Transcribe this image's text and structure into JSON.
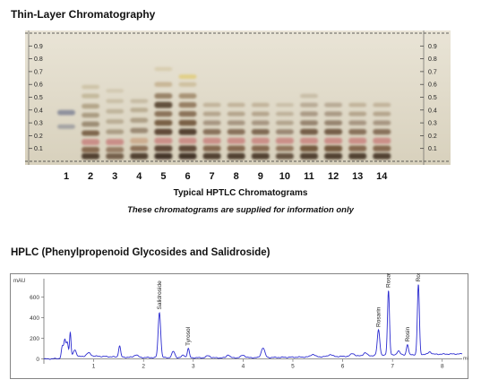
{
  "tlc": {
    "title": "Thin-Layer Chromatography",
    "caption": "Typical HPTLC Chromatograms",
    "note": "These chromatograms are supplied for information only",
    "rf_ticks": [
      "0.1",
      "0.2",
      "0.3",
      "0.4",
      "0.5",
      "0.6",
      "0.7",
      "0.8",
      "0.9"
    ],
    "lanes": [
      "1",
      "2",
      "3",
      "4",
      "5",
      "6",
      "7",
      "8",
      "9",
      "10",
      "11",
      "12",
      "13",
      "14"
    ]
  },
  "hplc": {
    "title": "HPLC (Phenylpropenoid Glycosides and Salidroside)"
  },
  "colors": {
    "plate_bg": "#e3ddcc",
    "trace": "#2b2bd0",
    "pink_band": "#c98b85",
    "brown_band": "#6e5337"
  },
  "chart_data": [
    {
      "type": "heatmap",
      "title": "Thin-Layer Chromatography",
      "xlabel": "Typical HPTLC Chromatograms",
      "x_categories": [
        "1",
        "2",
        "3",
        "4",
        "5",
        "6",
        "7",
        "8",
        "9",
        "10",
        "11",
        "12",
        "13",
        "14"
      ],
      "y_ticks": [
        0.1,
        0.2,
        0.3,
        0.4,
        0.5,
        0.6,
        0.7,
        0.8,
        0.9
      ],
      "ylim": [
        0,
        1.0
      ],
      "lanes": [
        {
          "lane": "1",
          "bands": [
            {
              "rf": 0.38,
              "c": "#7a7f93",
              "w": 0.7
            },
            {
              "rf": 0.27,
              "c": "#8d8f97",
              "w": 0.5
            }
          ]
        },
        {
          "lane": "2",
          "bands": [
            {
              "rf": 0.04,
              "c": "#4c3a2a",
              "w": 1
            },
            {
              "rf": 0.09,
              "c": "#7e5f45",
              "w": 0.9
            },
            {
              "rf": 0.15,
              "c": "#c98b85",
              "w": 1
            },
            {
              "rf": 0.22,
              "c": "#6e5337",
              "w": 0.8
            },
            {
              "rf": 0.29,
              "c": "#8d7a60",
              "w": 0.7
            },
            {
              "rf": 0.36,
              "c": "#99876a",
              "w": 0.6
            },
            {
              "rf": 0.43,
              "c": "#a59474",
              "w": 0.6
            },
            {
              "rf": 0.51,
              "c": "#b8aa88",
              "w": 0.5
            },
            {
              "rf": 0.58,
              "c": "#c5b896",
              "w": 0.4
            }
          ]
        },
        {
          "lane": "3",
          "bands": [
            {
              "rf": 0.04,
              "c": "#6a5440",
              "w": 0.9
            },
            {
              "rf": 0.09,
              "c": "#8c7056",
              "w": 0.8
            },
            {
              "rf": 0.15,
              "c": "#c98b85",
              "w": 1
            },
            {
              "rf": 0.23,
              "c": "#9b8a70",
              "w": 0.6
            },
            {
              "rf": 0.31,
              "c": "#ab9c80",
              "w": 0.5
            },
            {
              "rf": 0.39,
              "c": "#b3a68a",
              "w": 0.5
            },
            {
              "rf": 0.47,
              "c": "#bfb396",
              "w": 0.4
            },
            {
              "rf": 0.55,
              "c": "#c9bea2",
              "w": 0.3
            }
          ]
        },
        {
          "lane": "4",
          "bands": [
            {
              "rf": 0.04,
              "c": "#4c3a2a",
              "w": 1
            },
            {
              "rf": 0.1,
              "c": "#7e5f45",
              "w": 0.8
            },
            {
              "rf": 0.16,
              "c": "#caa98a",
              "w": 0.9
            },
            {
              "rf": 0.24,
              "c": "#8a7760",
              "w": 0.7
            },
            {
              "rf": 0.32,
              "c": "#9e8d72",
              "w": 0.6
            },
            {
              "rf": 0.4,
              "c": "#ab9b7e",
              "w": 0.5
            },
            {
              "rf": 0.47,
              "c": "#b9ac90",
              "w": 0.4
            }
          ]
        },
        {
          "lane": "5",
          "bands": [
            {
              "rf": 0.04,
              "c": "#3e2e22",
              "w": 1
            },
            {
              "rf": 0.1,
              "c": "#5a4330",
              "w": 1
            },
            {
              "rf": 0.16,
              "c": "#c98b85",
              "w": 1
            },
            {
              "rf": 0.23,
              "c": "#5a4330",
              "w": 1
            },
            {
              "rf": 0.3,
              "c": "#6e5337",
              "w": 0.9
            },
            {
              "rf": 0.37,
              "c": "#7d6246",
              "w": 0.8
            },
            {
              "rf": 0.44,
              "c": "#5c4a36",
              "w": 1
            },
            {
              "rf": 0.51,
              "c": "#8d7559",
              "w": 0.8
            },
            {
              "rf": 0.6,
              "c": "#bfa985",
              "w": 0.6
            },
            {
              "rf": 0.72,
              "c": "#d2c5a2",
              "w": 0.4
            }
          ]
        },
        {
          "lane": "6",
          "bands": [
            {
              "rf": 0.04,
              "c": "#3e2e22",
              "w": 1
            },
            {
              "rf": 0.1,
              "c": "#5a4330",
              "w": 1
            },
            {
              "rf": 0.16,
              "c": "#c98b85",
              "w": 1
            },
            {
              "rf": 0.23,
              "c": "#4e3a2a",
              "w": 1
            },
            {
              "rf": 0.3,
              "c": "#6e5337",
              "w": 0.9
            },
            {
              "rf": 0.37,
              "c": "#7d6246",
              "w": 0.8
            },
            {
              "rf": 0.44,
              "c": "#8a6f52",
              "w": 0.8
            },
            {
              "rf": 0.51,
              "c": "#9a8160",
              "w": 0.7
            },
            {
              "rf": 0.6,
              "c": "#c7b58e",
              "w": 0.5
            },
            {
              "rf": 0.66,
              "c": "#e0c96a",
              "w": 0.5
            }
          ]
        },
        {
          "lane": "7",
          "bands": [
            {
              "rf": 0.04,
              "c": "#4c3a2a",
              "w": 1
            },
            {
              "rf": 0.1,
              "c": "#7e5f45",
              "w": 0.9
            },
            {
              "rf": 0.16,
              "c": "#c98b85",
              "w": 1
            },
            {
              "rf": 0.23,
              "c": "#7a6048",
              "w": 0.8
            },
            {
              "rf": 0.3,
              "c": "#94806a",
              "w": 0.6
            },
            {
              "rf": 0.37,
              "c": "#a38f74",
              "w": 0.5
            },
            {
              "rf": 0.44,
              "c": "#b19f82",
              "w": 0.4
            }
          ]
        },
        {
          "lane": "8",
          "bands": [
            {
              "rf": 0.04,
              "c": "#4c3a2a",
              "w": 1
            },
            {
              "rf": 0.1,
              "c": "#7e5f45",
              "w": 0.9
            },
            {
              "rf": 0.16,
              "c": "#c98b85",
              "w": 1
            },
            {
              "rf": 0.23,
              "c": "#7a6048",
              "w": 0.8
            },
            {
              "rf": 0.3,
              "c": "#94806a",
              "w": 0.6
            },
            {
              "rf": 0.37,
              "c": "#a38f74",
              "w": 0.5
            },
            {
              "rf": 0.44,
              "c": "#b19f82",
              "w": 0.4
            }
          ]
        },
        {
          "lane": "9",
          "bands": [
            {
              "rf": 0.04,
              "c": "#4c3a2a",
              "w": 1
            },
            {
              "rf": 0.1,
              "c": "#7e5f45",
              "w": 0.9
            },
            {
              "rf": 0.16,
              "c": "#c98b85",
              "w": 1
            },
            {
              "rf": 0.23,
              "c": "#6f5640",
              "w": 0.8
            },
            {
              "rf": 0.3,
              "c": "#94806a",
              "w": 0.6
            },
            {
              "rf": 0.37,
              "c": "#a38f74",
              "w": 0.5
            },
            {
              "rf": 0.44,
              "c": "#b19f82",
              "w": 0.4
            }
          ]
        },
        {
          "lane": "10",
          "bands": [
            {
              "rf": 0.04,
              "c": "#5a4634",
              "w": 0.9
            },
            {
              "rf": 0.1,
              "c": "#86684e",
              "w": 0.8
            },
            {
              "rf": 0.16,
              "c": "#c98b85",
              "w": 1
            },
            {
              "rf": 0.23,
              "c": "#8a7460",
              "w": 0.7
            },
            {
              "rf": 0.3,
              "c": "#a08e76",
              "w": 0.5
            },
            {
              "rf": 0.37,
              "c": "#ad9d83",
              "w": 0.4
            },
            {
              "rf": 0.44,
              "c": "#baac92",
              "w": 0.3
            }
          ]
        },
        {
          "lane": "11",
          "bands": [
            {
              "rf": 0.04,
              "c": "#4c3a2a",
              "w": 1
            },
            {
              "rf": 0.1,
              "c": "#6e5337",
              "w": 1
            },
            {
              "rf": 0.16,
              "c": "#c98b85",
              "w": 1
            },
            {
              "rf": 0.23,
              "c": "#6a513b",
              "w": 0.9
            },
            {
              "rf": 0.3,
              "c": "#85705a",
              "w": 0.7
            },
            {
              "rf": 0.37,
              "c": "#998570",
              "w": 0.6
            },
            {
              "rf": 0.44,
              "c": "#a89780",
              "w": 0.5
            },
            {
              "rf": 0.51,
              "c": "#bbae94",
              "w": 0.4
            }
          ]
        },
        {
          "lane": "12",
          "bands": [
            {
              "rf": 0.04,
              "c": "#4c3a2a",
              "w": 1
            },
            {
              "rf": 0.1,
              "c": "#6e5337",
              "w": 1
            },
            {
              "rf": 0.16,
              "c": "#c98b85",
              "w": 1
            },
            {
              "rf": 0.23,
              "c": "#6a513b",
              "w": 0.9
            },
            {
              "rf": 0.3,
              "c": "#85705a",
              "w": 0.7
            },
            {
              "rf": 0.37,
              "c": "#998570",
              "w": 0.6
            },
            {
              "rf": 0.44,
              "c": "#a89780",
              "w": 0.5
            }
          ]
        },
        {
          "lane": "13",
          "bands": [
            {
              "rf": 0.04,
              "c": "#4c3a2a",
              "w": 1
            },
            {
              "rf": 0.1,
              "c": "#7e5f45",
              "w": 0.9
            },
            {
              "rf": 0.16,
              "c": "#c98b85",
              "w": 1
            },
            {
              "rf": 0.23,
              "c": "#7a6048",
              "w": 0.8
            },
            {
              "rf": 0.3,
              "c": "#94806a",
              "w": 0.6
            },
            {
              "rf": 0.37,
              "c": "#a38f74",
              "w": 0.5
            },
            {
              "rf": 0.44,
              "c": "#b19f82",
              "w": 0.4
            }
          ]
        },
        {
          "lane": "14",
          "bands": [
            {
              "rf": 0.04,
              "c": "#4c3a2a",
              "w": 1
            },
            {
              "rf": 0.1,
              "c": "#7e5f45",
              "w": 0.9
            },
            {
              "rf": 0.16,
              "c": "#c98b85",
              "w": 1
            },
            {
              "rf": 0.23,
              "c": "#7a6048",
              "w": 0.8
            },
            {
              "rf": 0.3,
              "c": "#94806a",
              "w": 0.6
            },
            {
              "rf": 0.37,
              "c": "#a38f74",
              "w": 0.5
            },
            {
              "rf": 0.44,
              "c": "#b19f82",
              "w": 0.4
            }
          ]
        }
      ]
    },
    {
      "type": "line",
      "title": "HPLC (Phenylpropenoid Glycosides and Salidroside)",
      "ylabel": "mAU",
      "xlabel": "",
      "xunit": "min",
      "xlim": [
        0,
        8.4
      ],
      "ylim": [
        -20,
        780
      ],
      "x_ticks": [
        1,
        2,
        3,
        4,
        5,
        6,
        7,
        8
      ],
      "y_ticks": [
        0,
        200,
        400,
        600
      ],
      "baseline": [
        [
          0,
          0
        ],
        [
          0.3,
          5
        ],
        [
          0.6,
          20
        ],
        [
          0.9,
          30
        ],
        [
          1.2,
          25
        ],
        [
          1.6,
          18
        ],
        [
          2.0,
          15
        ],
        [
          2.5,
          14
        ],
        [
          3.0,
          13
        ],
        [
          3.5,
          12
        ],
        [
          4.0,
          13
        ],
        [
          4.5,
          15
        ],
        [
          5.0,
          18
        ],
        [
          5.5,
          22
        ],
        [
          6.0,
          26
        ],
        [
          6.5,
          32
        ],
        [
          7.0,
          38
        ],
        [
          7.5,
          44
        ],
        [
          8.0,
          48
        ],
        [
          8.4,
          50
        ]
      ],
      "peaks": [
        {
          "x": 0.37,
          "y": 110,
          "w": 0.02
        },
        {
          "x": 0.42,
          "y": 170,
          "w": 0.02
        },
        {
          "x": 0.47,
          "y": 150,
          "w": 0.02
        },
        {
          "x": 0.53,
          "y": 240,
          "w": 0.015
        },
        {
          "x": 0.62,
          "y": 70,
          "w": 0.03
        },
        {
          "x": 0.9,
          "y": 30,
          "w": 0.04
        },
        {
          "x": 1.52,
          "y": 110,
          "w": 0.02
        },
        {
          "x": 1.85,
          "y": 25,
          "w": 0.04
        },
        {
          "x": 2.32,
          "y": 440,
          "w": 0.025,
          "label": "Salidroside"
        },
        {
          "x": 2.6,
          "y": 60,
          "w": 0.03
        },
        {
          "x": 2.8,
          "y": 25,
          "w": 0.03
        },
        {
          "x": 2.9,
          "y": 90,
          "w": 0.02,
          "label": "Tyrosol"
        },
        {
          "x": 3.3,
          "y": 20,
          "w": 0.04
        },
        {
          "x": 3.7,
          "y": 30,
          "w": 0.03
        },
        {
          "x": 4.0,
          "y": 25,
          "w": 0.04
        },
        {
          "x": 4.4,
          "y": 95,
          "w": 0.035
        },
        {
          "x": 5.4,
          "y": 25,
          "w": 0.04
        },
        {
          "x": 5.75,
          "y": 20,
          "w": 0.04
        },
        {
          "x": 6.2,
          "y": 25,
          "w": 0.04
        },
        {
          "x": 6.45,
          "y": 30,
          "w": 0.035
        },
        {
          "x": 6.72,
          "y": 250,
          "w": 0.025,
          "label": "Rosarin"
        },
        {
          "x": 6.92,
          "y": 630,
          "w": 0.02,
          "label": "Rosavin"
        },
        {
          "x": 7.12,
          "y": 40,
          "w": 0.03
        },
        {
          "x": 7.3,
          "y": 100,
          "w": 0.02,
          "label": "Rosin"
        },
        {
          "x": 7.52,
          "y": 680,
          "w": 0.02,
          "label": "Rosiridin"
        },
        {
          "x": 7.75,
          "y": 25,
          "w": 0.03
        }
      ]
    }
  ]
}
